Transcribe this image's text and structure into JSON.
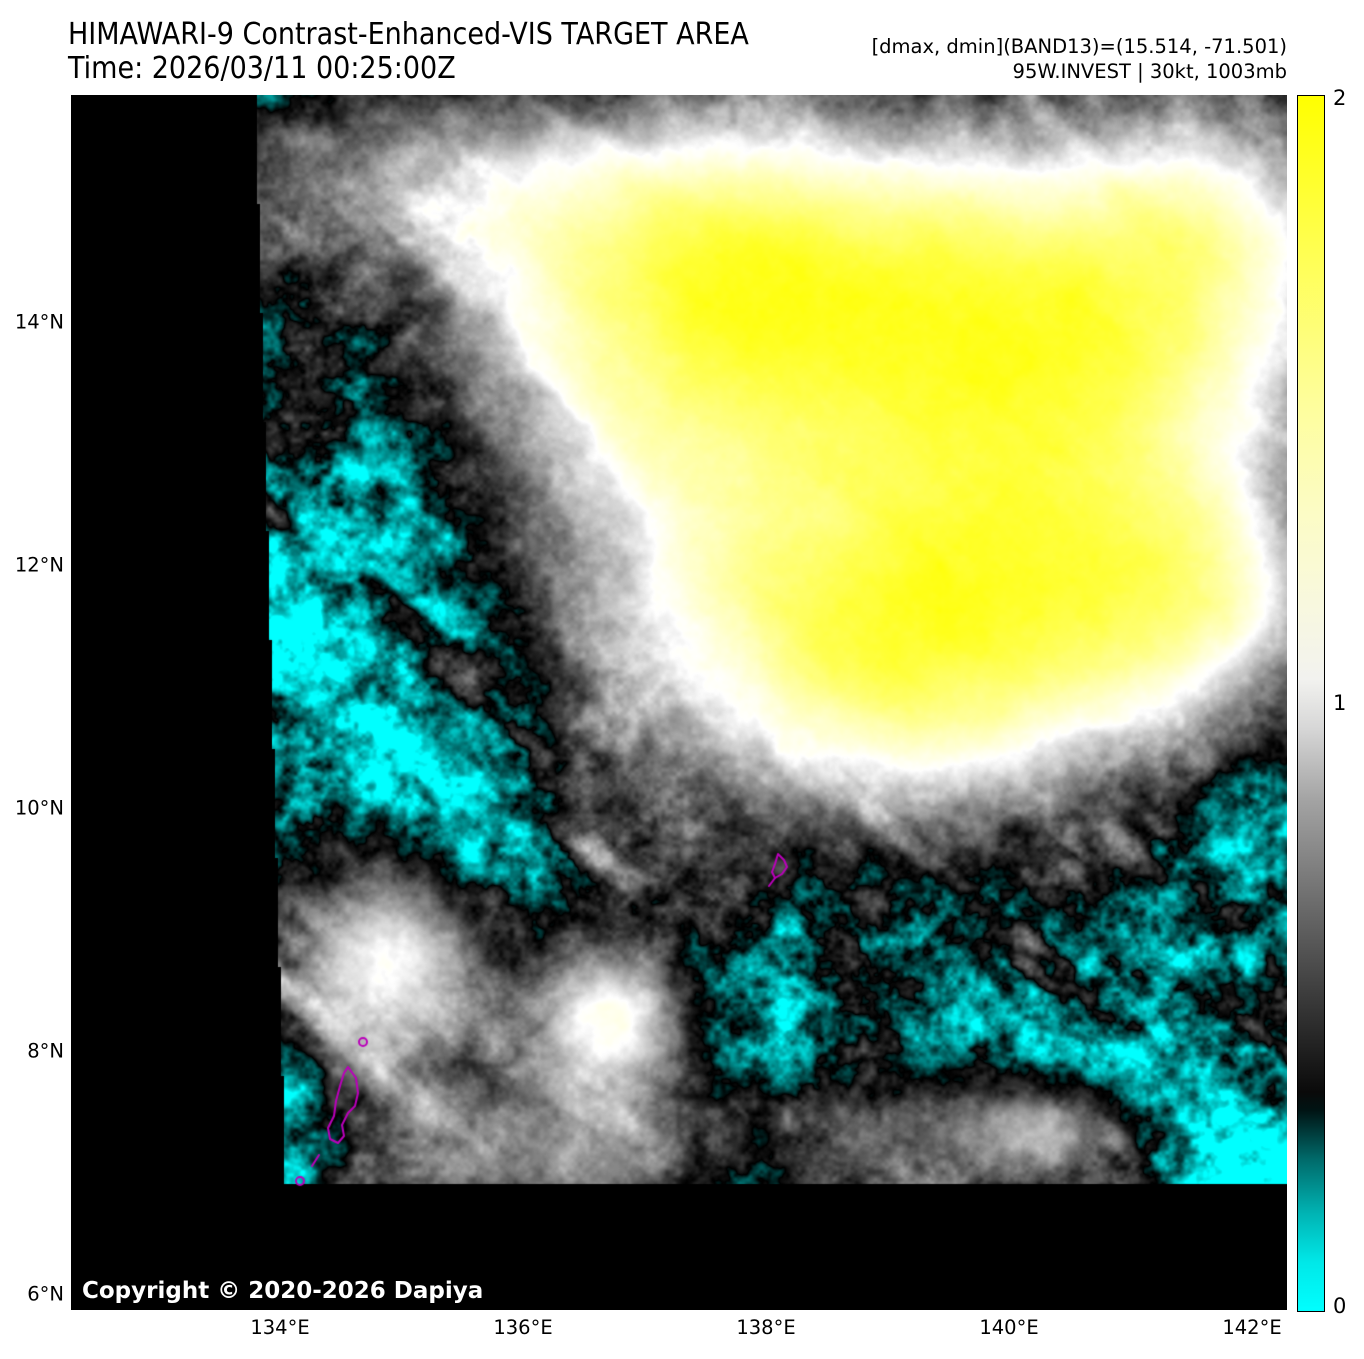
{
  "header": {
    "title": "HIMAWARI-9 Contrast-Enhanced-VIS TARGET AREA",
    "time_label": "Time: 2026/03/11 00:25:00Z",
    "stats_line": "[dmax, dmin](BAND13)=(15.514, -71.501)",
    "storm_line": "95W.INVEST | 30kt, 1003mb"
  },
  "axes": {
    "lat_ticks": [
      "14°N",
      "12°N",
      "10°N",
      "8°N",
      "6°N"
    ],
    "lon_ticks": [
      "134°E",
      "136°E",
      "138°E",
      "140°E",
      "142°E"
    ]
  },
  "colorbar": {
    "min": 0,
    "max": 2,
    "tick_labels": [
      "2",
      "1",
      "0"
    ],
    "colors": {
      "low": "#00FFFF",
      "mid_low": "#000000",
      "mid_high": "#FFFFFF",
      "high": "#FFFF00"
    }
  },
  "map": {
    "copyright": "Copyright © 2020-2026 Dapiya",
    "colors": {
      "ocean": "#00FFFF",
      "cloud": "#FFFFFF",
      "overbright": "#FFFF00",
      "coastline": "#BB00BB",
      "nodata": "#000000"
    }
  }
}
